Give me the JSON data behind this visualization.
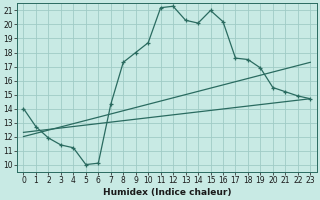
{
  "xlabel": "Humidex (Indice chaleur)",
  "xlim": [
    -0.5,
    23.5
  ],
  "ylim": [
    9.5,
    21.5
  ],
  "xticks": [
    0,
    1,
    2,
    3,
    4,
    5,
    6,
    7,
    8,
    9,
    10,
    11,
    12,
    13,
    14,
    15,
    16,
    17,
    18,
    19,
    20,
    21,
    22,
    23
  ],
  "yticks": [
    10,
    11,
    12,
    13,
    14,
    15,
    16,
    17,
    18,
    19,
    20,
    21
  ],
  "bg_color": "#c8eae4",
  "grid_color": "#a0ccc6",
  "line_color": "#2a6b60",
  "line1_x": [
    0,
    1,
    2,
    3,
    4,
    5,
    6,
    7,
    8,
    9,
    10,
    11,
    12,
    13,
    14,
    15,
    16,
    17,
    18,
    19,
    20,
    21,
    22,
    23
  ],
  "line1_y": [
    14.0,
    12.7,
    11.9,
    11.4,
    11.2,
    10.0,
    10.1,
    14.3,
    17.3,
    18.0,
    18.7,
    21.2,
    21.3,
    20.3,
    20.1,
    21.0,
    20.2,
    17.6,
    17.5,
    16.9,
    15.5,
    15.2,
    14.9,
    14.7
  ],
  "line2_x": [
    0,
    23
  ],
  "line2_y": [
    12.3,
    14.7
  ],
  "line3_x": [
    0,
    23
  ],
  "line3_y": [
    12.0,
    17.3
  ],
  "marker": "+"
}
